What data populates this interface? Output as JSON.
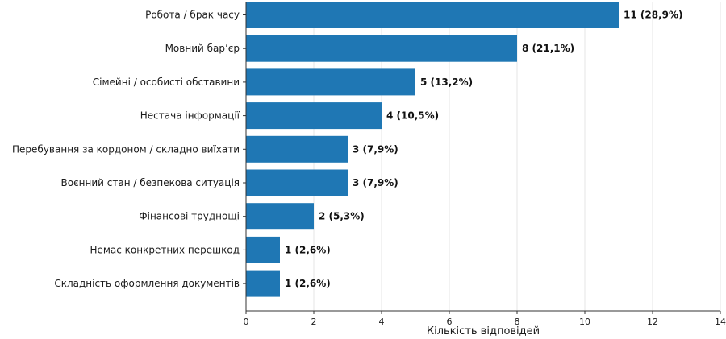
{
  "chart_data": {
    "type": "bar",
    "orientation": "horizontal",
    "categories": [
      "Робота / брак часу",
      "Мовний бар’єр",
      "Сімейні / особисті обставини",
      "Нестача інформації",
      "Перебування за кордоном / складно виїхати",
      "Воєнний стан / безпекова ситуація",
      "Фінансові труднощі",
      "Немає конкретних перешкод",
      "Складність оформлення документів"
    ],
    "values": [
      11,
      8,
      5,
      4,
      3,
      3,
      2,
      1,
      1
    ],
    "data_labels": [
      "11 (28,9%)",
      "8 (21,1%)",
      "5 (13,2%)",
      "4 (10,5%)",
      "3 (7,9%)",
      "3 (7,9%)",
      "2 (5,3%)",
      "1 (2,6%)",
      "1 (2,6%)"
    ],
    "title": "",
    "xlabel": "Кількість відповідей",
    "ylabel": "",
    "xlim": [
      0,
      14
    ],
    "xticks": [
      0,
      2,
      4,
      6,
      8,
      10,
      12,
      14
    ],
    "grid": "vertical",
    "legend": "none",
    "bar_color": "#1f77b4"
  }
}
